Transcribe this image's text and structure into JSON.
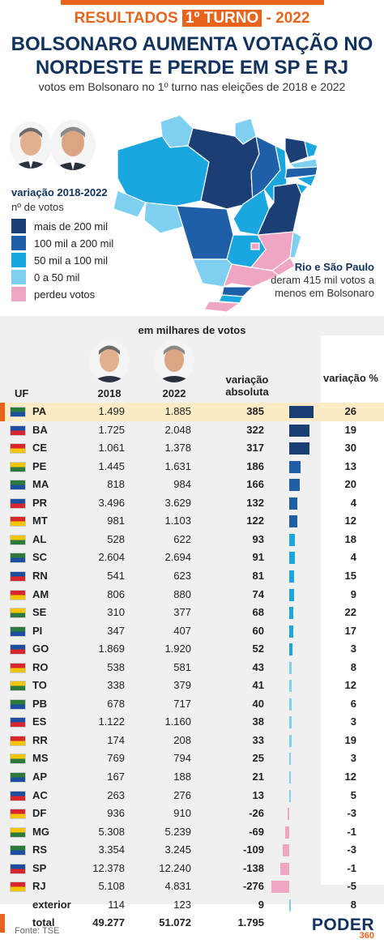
{
  "header": {
    "kicker_left": "RESULTADOS",
    "kicker_box": "1º TURNO",
    "kicker_right": "- 2022",
    "title_line1": "BOLSONARO AUMENTA VOTAÇÃO NO",
    "title_line2": "NORDESTE E PERDE EM SP E RJ",
    "subtitle": "votos em Bolsonaro no 1º turno nas eleições de 2018 e 2022"
  },
  "legend": {
    "title": "variação 2018-2022",
    "subtitle": "nº de votos",
    "items": [
      {
        "label": "mais de 200 mil",
        "color": "#1b3f75"
      },
      {
        "label": "100 mil a 200 mil",
        "color": "#1f5fa8"
      },
      {
        "label": "50 mil a 100 mil",
        "color": "#1aa6de"
      },
      {
        "label": "0 a 50 mil",
        "color": "#7fd0f0"
      },
      {
        "label": "perdeu votos",
        "color": "#eea6c4"
      }
    ]
  },
  "note": {
    "bold": "Rio e São Paulo",
    "rest": "deram 415 mil votos a menos em Bolsonaro"
  },
  "table_header": {
    "units": "em milhares de votos",
    "uf": "UF",
    "y2018": "2018",
    "y2022": "2022",
    "abs": "variação absoluta",
    "pct": "variação %"
  },
  "chart_data": {
    "type": "table",
    "columns": [
      "UF",
      "2018",
      "2022",
      "variação absoluta",
      "variação %"
    ],
    "rows": [
      {
        "uf": "PA",
        "y2018": "1.499",
        "y2022": "1.885",
        "abs": "385",
        "pct": "26",
        "abs_value": 385
      },
      {
        "uf": "BA",
        "y2018": "1.725",
        "y2022": "2.048",
        "abs": "322",
        "pct": "19",
        "abs_value": 322
      },
      {
        "uf": "CE",
        "y2018": "1.061",
        "y2022": "1.378",
        "abs": "317",
        "pct": "30",
        "abs_value": 317
      },
      {
        "uf": "PE",
        "y2018": "1.445",
        "y2022": "1.631",
        "abs": "186",
        "pct": "13",
        "abs_value": 186
      },
      {
        "uf": "MA",
        "y2018": "818",
        "y2022": "984",
        "abs": "166",
        "pct": "20",
        "abs_value": 166
      },
      {
        "uf": "PR",
        "y2018": "3.496",
        "y2022": "3.629",
        "abs": "132",
        "pct": "4",
        "abs_value": 132
      },
      {
        "uf": "MT",
        "y2018": "981",
        "y2022": "1.103",
        "abs": "122",
        "pct": "12",
        "abs_value": 122
      },
      {
        "uf": "AL",
        "y2018": "528",
        "y2022": "622",
        "abs": "93",
        "pct": "18",
        "abs_value": 93
      },
      {
        "uf": "SC",
        "y2018": "2.604",
        "y2022": "2.694",
        "abs": "91",
        "pct": "4",
        "abs_value": 91
      },
      {
        "uf": "RN",
        "y2018": "541",
        "y2022": "623",
        "abs": "81",
        "pct": "15",
        "abs_value": 81
      },
      {
        "uf": "AM",
        "y2018": "806",
        "y2022": "880",
        "abs": "74",
        "pct": "9",
        "abs_value": 74
      },
      {
        "uf": "SE",
        "y2018": "310",
        "y2022": "377",
        "abs": "68",
        "pct": "22",
        "abs_value": 68
      },
      {
        "uf": "PI",
        "y2018": "347",
        "y2022": "407",
        "abs": "60",
        "pct": "17",
        "abs_value": 60
      },
      {
        "uf": "GO",
        "y2018": "1.869",
        "y2022": "1.920",
        "abs": "52",
        "pct": "3",
        "abs_value": 52
      },
      {
        "uf": "RO",
        "y2018": "538",
        "y2022": "581",
        "abs": "43",
        "pct": "8",
        "abs_value": 43
      },
      {
        "uf": "TO",
        "y2018": "338",
        "y2022": "379",
        "abs": "41",
        "pct": "12",
        "abs_value": 41
      },
      {
        "uf": "PB",
        "y2018": "678",
        "y2022": "717",
        "abs": "40",
        "pct": "6",
        "abs_value": 40
      },
      {
        "uf": "ES",
        "y2018": "1.122",
        "y2022": "1.160",
        "abs": "38",
        "pct": "3",
        "abs_value": 38
      },
      {
        "uf": "RR",
        "y2018": "174",
        "y2022": "208",
        "abs": "33",
        "pct": "19",
        "abs_value": 33
      },
      {
        "uf": "MS",
        "y2018": "769",
        "y2022": "794",
        "abs": "25",
        "pct": "3",
        "abs_value": 25
      },
      {
        "uf": "AP",
        "y2018": "167",
        "y2022": "188",
        "abs": "21",
        "pct": "12",
        "abs_value": 21
      },
      {
        "uf": "AC",
        "y2018": "263",
        "y2022": "276",
        "abs": "13",
        "pct": "5",
        "abs_value": 13
      },
      {
        "uf": "DF",
        "y2018": "936",
        "y2022": "910",
        "abs": "-26",
        "pct": "-3",
        "abs_value": -26
      },
      {
        "uf": "MG",
        "y2018": "5.308",
        "y2022": "5.239",
        "abs": "-69",
        "pct": "-1",
        "abs_value": -69
      },
      {
        "uf": "RS",
        "y2018": "3.354",
        "y2022": "3.245",
        "abs": "-109",
        "pct": "-3",
        "abs_value": -109
      },
      {
        "uf": "SP",
        "y2018": "12.378",
        "y2022": "12.240",
        "abs": "-138",
        "pct": "-1",
        "abs_value": -138
      },
      {
        "uf": "RJ",
        "y2018": "5.108",
        "y2022": "4.831",
        "abs": "-276",
        "pct": "-5",
        "abs_value": -276
      },
      {
        "uf": "exterior",
        "y2018": "114",
        "y2022": "123",
        "abs": "9",
        "pct": "8",
        "abs_value": 9
      }
    ],
    "total": {
      "uf": "total",
      "y2018": "49.277",
      "y2022": "51.072",
      "abs": "1.795",
      "pct": ""
    },
    "bar_colors": {
      "mais de 200 mil": "#1b3f75",
      "100 mil a 200 mil": "#1f5fa8",
      "50 mil a 100 mil": "#1aa6de",
      "0 a 50 mil": "#7fd0f0",
      "perdeu votos": "#eea6c4"
    }
  },
  "footer": {
    "source": "Fonte: TSE",
    "logo_word": "PODER",
    "logo_num": "360"
  }
}
